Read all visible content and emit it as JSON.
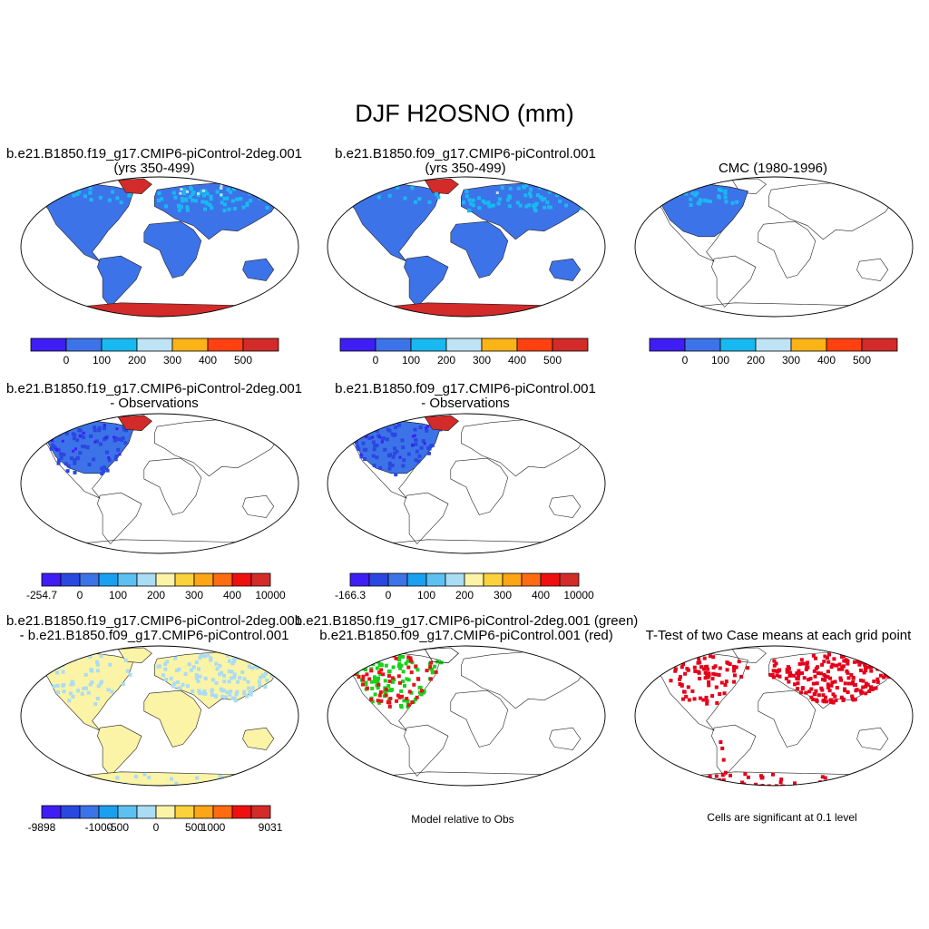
{
  "title": "DJF H2OSNO (mm)",
  "colors": {
    "ocean": "#ffffff",
    "coast": "#000000",
    "uniform_blue": "#3d73e8",
    "green": "#17d21a",
    "red": "#e8101a",
    "ttest_red": "#e3001b"
  },
  "chart_data": [
    {
      "type": "heatmap",
      "id": "p1",
      "title": [
        "b.e21.B1850.f19_g17.CMIP6-piControl-2deg.001",
        "(yrs 350-499)"
      ],
      "projection": "robinson",
      "colorbar": {
        "colors": [
          "#3e1ef5",
          "#3d73e8",
          "#18b9f0",
          "#bde3f5",
          "#fcb315",
          "#ff4010",
          "#d22b2a"
        ],
        "labels": [
          "0",
          "100",
          "200",
          "300",
          "400",
          "500"
        ]
      }
    },
    {
      "type": "heatmap",
      "id": "p2",
      "title": [
        "b.e21.B1850.f09_g17.CMIP6-piControl.001",
        "(yrs 350-499)"
      ],
      "projection": "robinson",
      "colorbar": {
        "colors": [
          "#3e1ef5",
          "#3d73e8",
          "#18b9f0",
          "#bde3f5",
          "#fcb315",
          "#ff4010",
          "#d22b2a"
        ],
        "labels": [
          "0",
          "100",
          "200",
          "300",
          "400",
          "500"
        ]
      }
    },
    {
      "type": "heatmap",
      "id": "p3",
      "title": [
        "",
        "CMC (1980-1996)"
      ],
      "projection": "robinson",
      "colorbar": {
        "colors": [
          "#3e1ef5",
          "#3d73e8",
          "#18b9f0",
          "#bde3f5",
          "#fcb315",
          "#ff4010",
          "#d22b2a"
        ],
        "labels": [
          "0",
          "100",
          "200",
          "300",
          "400",
          "500"
        ]
      }
    },
    {
      "type": "heatmap",
      "id": "p4",
      "title": [
        "b.e21.B1850.f19_g17.CMIP6-piControl-2deg.001",
        "- Observations"
      ],
      "projection": "robinson",
      "colorbar": {
        "colors": [
          "#3e1ef5",
          "#2a48e0",
          "#3d73e8",
          "#1aa0f0",
          "#5cc1f0",
          "#aadcf4",
          "#fbf3a6",
          "#fcd23c",
          "#fca516",
          "#ff6b10",
          "#f00f0f",
          "#d22b2a"
        ],
        "labels": [
          "-254.7",
          "0",
          "100",
          "200",
          "300",
          "400",
          "10000"
        ]
      }
    },
    {
      "type": "heatmap",
      "id": "p5",
      "title": [
        "b.e21.B1850.f09_g17.CMIP6-piControl.001",
        "- Observations"
      ],
      "projection": "robinson",
      "colorbar": {
        "colors": [
          "#3e1ef5",
          "#2a48e0",
          "#3d73e8",
          "#1aa0f0",
          "#5cc1f0",
          "#aadcf4",
          "#fbf3a6",
          "#fcd23c",
          "#fca516",
          "#ff6b10",
          "#f00f0f",
          "#d22b2a"
        ],
        "labels": [
          "-166.3",
          "0",
          "100",
          "200",
          "300",
          "400",
          "10000"
        ]
      }
    },
    {
      "type": "heatmap",
      "id": "p6",
      "title": [
        "b.e21.B1850.f19_g17.CMIP6-piControl-2deg.001",
        "- b.e21.B1850.f09_g17.CMIP6-piControl.001"
      ],
      "projection": "robinson",
      "colorbar": {
        "colors": [
          "#3e1ef5",
          "#2a48e0",
          "#3d73e8",
          "#1aa0f0",
          "#5cc1f0",
          "#aadcf4",
          "#fbf3a6",
          "#fcd23c",
          "#fca516",
          "#ff6b10",
          "#f00f0f",
          "#d22b2a"
        ],
        "labels": [
          "-9898",
          "-1000",
          "-500",
          "0",
          "500",
          "1000",
          "9031"
        ]
      }
    },
    {
      "type": "heatmap",
      "id": "p7",
      "title": [
        "b.e21.B1850.f19_g17.CMIP6-piControl-2deg.001 (green)",
        "b.e21.B1850.f09_g17.CMIP6-piControl.001 (red)"
      ],
      "projection": "robinson",
      "note": "Model relative to Obs"
    },
    {
      "type": "heatmap",
      "id": "p8",
      "title": [
        "",
        "T-Test of two Case means at each grid point"
      ],
      "projection": "robinson",
      "note": "Cells are significant at 0.1 level"
    }
  ]
}
